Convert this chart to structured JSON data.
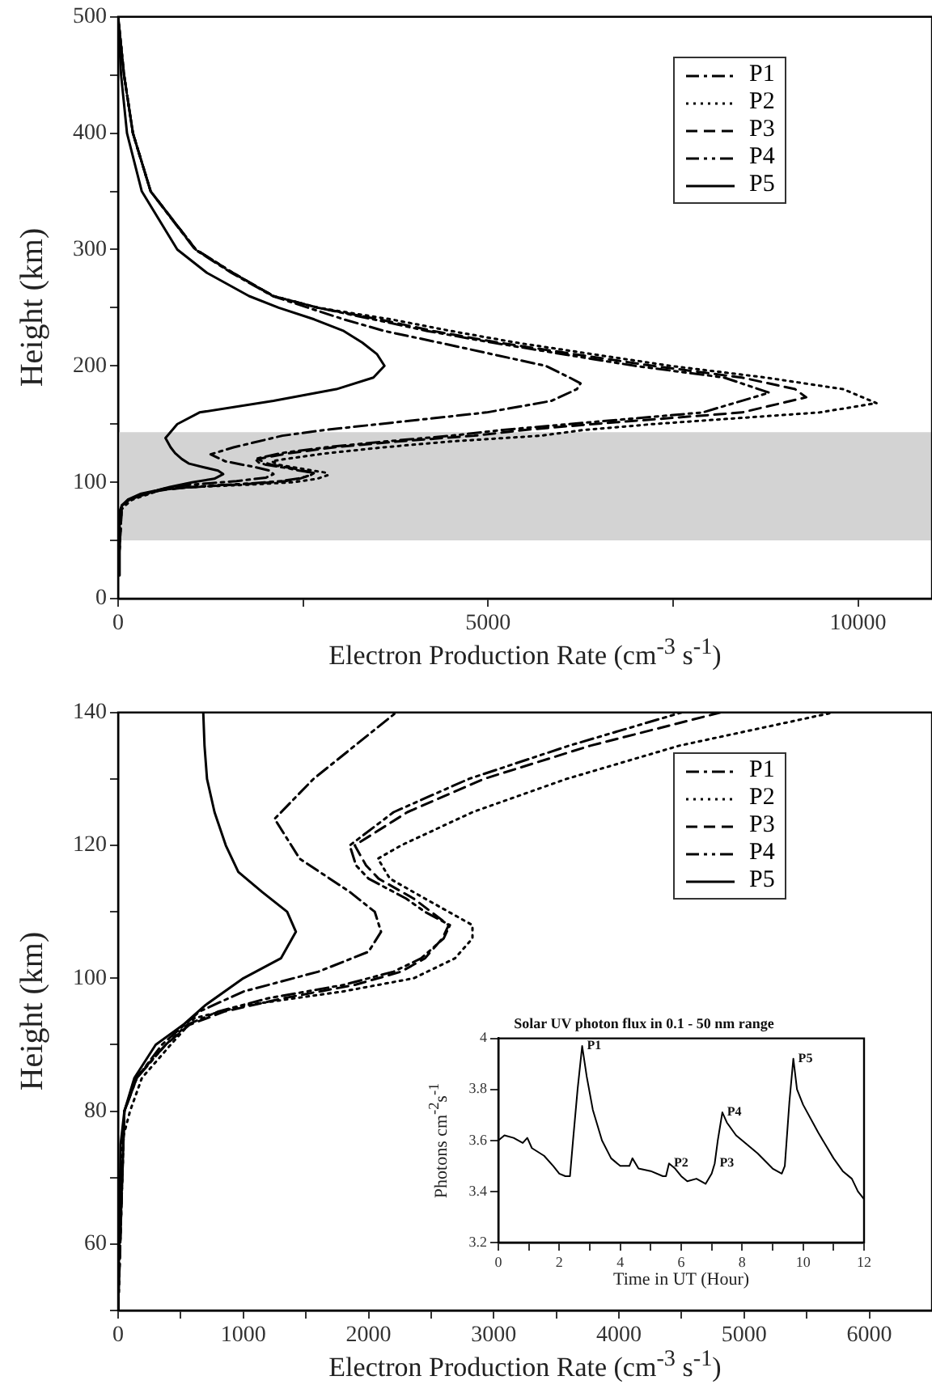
{
  "chart_data": [
    {
      "type": "line",
      "xlabel": "Electron Production Rate (cm$^{-3}$ s$^{-1}$)",
      "ylabel": "Height (km)",
      "xlim": [
        0,
        11000
      ],
      "xticks": [
        0,
        {
          "value": 2500,
          "label": null
        },
        5000,
        {
          "value": 7500,
          "label": null
        },
        10000
      ],
      "ylim": [
        0,
        500
      ],
      "yticks": [
        0,
        {
          "value": 50,
          "label": null
        },
        100,
        {
          "value": 150,
          "label": null
        },
        200,
        {
          "value": 250,
          "label": null
        },
        300,
        {
          "value": 350,
          "label": null
        },
        400,
        {
          "value": 450,
          "label": null
        },
        500
      ],
      "legend": "top right",
      "bands": [
        {
          "axis": "y",
          "from": 50,
          "to": 143,
          "color": "#d3d3d3"
        }
      ],
      "series": [
        {
          "name": "P1",
          "color": "#000000",
          "line_style": "dashdot",
          "x": [
            0,
            50,
            150,
            350,
            650,
            1000,
            1600,
            2000,
            2100,
            2050,
            1850,
            1450,
            1250,
            1560,
            2220,
            2800,
            3530,
            4980,
            5860,
            6200,
            6250,
            6100,
            5780,
            5060,
            4340,
            3600,
            3050,
            2570,
            2090,
            1530,
            1040,
            440,
            200,
            80,
            0
          ],
          "values": [
            20,
            80,
            85,
            90,
            95,
            98,
            101,
            104,
            107,
            110,
            113,
            118,
            124,
            130,
            140,
            145,
            150,
            160,
            170,
            180,
            185,
            190,
            200,
            210,
            220,
            230,
            240,
            250,
            260,
            280,
            300,
            350,
            400,
            450,
            500
          ]
        },
        {
          "name": "P2",
          "color": "#000000",
          "line_style": "dotted",
          "x": [
            0,
            25,
            95,
            190,
            420,
            610,
            1040,
            1790,
            2360,
            2690,
            2830,
            2830,
            2640,
            2450,
            2170,
            2075,
            2260,
            2830,
            3580,
            4480,
            5710,
            6300,
            7230,
            9480,
            10250,
            9800,
            8750,
            7470,
            6420,
            5380,
            4500,
            3690,
            2700,
            2100,
            1550,
            1050,
            440,
            200,
            80,
            0
          ],
          "values": [
            20,
            75,
            80,
            85,
            90,
            94,
            96,
            98,
            100,
            103,
            106,
            108,
            110,
            112,
            115,
            118,
            120,
            125,
            130,
            135,
            140,
            145,
            150,
            160,
            168,
            180,
            190,
            200,
            210,
            220,
            230,
            240,
            250,
            260,
            280,
            300,
            350,
            400,
            450,
            500
          ]
        },
        {
          "name": "P3",
          "color": "#000000",
          "line_style": "dashed",
          "x": [
            0,
            50,
            140,
            380,
            570,
            850,
            1320,
            1890,
            2260,
            2450,
            2590,
            2640,
            2500,
            2360,
            2080,
            1980,
            1890,
            2310,
            2920,
            3770,
            4810,
            5500,
            6420,
            8430,
            9300,
            9150,
            8430,
            7230,
            6180,
            5140,
            4260,
            3530,
            2700,
            2100,
            1550,
            1050,
            440,
            200,
            80,
            0
          ],
          "values": [
            20,
            80,
            85,
            90,
            93,
            95,
            97,
            99,
            101,
            103,
            106,
            108,
            110,
            112,
            115,
            117,
            120,
            125,
            130,
            135,
            140,
            145,
            150,
            160,
            173,
            180,
            190,
            200,
            210,
            220,
            230,
            240,
            250,
            260,
            280,
            300,
            350,
            400,
            450,
            500
          ]
        },
        {
          "name": "P4",
          "color": "#000000",
          "line_style": "dashdotdot",
          "x": [
            0,
            50,
            150,
            380,
            550,
            800,
            1200,
            1800,
            2200,
            2420,
            2600,
            2650,
            2450,
            2300,
            2000,
            1900,
            1850,
            2200,
            2800,
            3600,
            4500,
            5200,
            6100,
            7900,
            8800,
            8190,
            6990,
            6020,
            5060,
            4180,
            3450,
            2700,
            2100,
            1550,
            1050,
            440,
            200,
            80,
            0
          ],
          "values": [
            20,
            80,
            85,
            90,
            93,
            95,
            97,
            99,
            101,
            103,
            106,
            108,
            110,
            112,
            115,
            117,
            120,
            125,
            130,
            135,
            140,
            145,
            150,
            160,
            177,
            190,
            200,
            210,
            220,
            230,
            240,
            250,
            260,
            280,
            300,
            350,
            400,
            450,
            500
          ]
        },
        {
          "name": "P5",
          "color": "#000000",
          "line_style": "solid",
          "x": [
            0,
            20,
            50,
            130,
            300,
            520,
            700,
            1000,
            1300,
            1420,
            1350,
            1150,
            960,
            860,
            770,
            710,
            640,
            800,
            1100,
            2100,
            2950,
            3450,
            3600,
            3500,
            3300,
            3050,
            2650,
            2170,
            1770,
            1200,
            800,
            320,
            120,
            40,
            0
          ],
          "values": [
            20,
            75,
            80,
            85,
            90,
            93,
            96,
            100,
            103,
            107,
            110,
            113,
            116,
            120,
            125,
            130,
            138,
            150,
            160,
            170,
            180,
            190,
            200,
            210,
            220,
            230,
            240,
            250,
            260,
            280,
            300,
            350,
            400,
            450,
            500
          ]
        }
      ]
    },
    {
      "type": "line",
      "xlabel": "Electron Production Rate (cm$^{-3}$ s$^{-1}$)",
      "ylabel": "Height (km)",
      "xlim": [
        0,
        6500
      ],
      "xticks": [
        0,
        {
          "value": 500,
          "label": null
        },
        1000,
        {
          "value": 1500,
          "label": null
        },
        2000,
        {
          "value": 2500,
          "label": null
        },
        3000,
        {
          "value": 3500,
          "label": null
        },
        4000,
        {
          "value": 4500,
          "label": null
        },
        5000,
        {
          "value": 5500,
          "label": null
        },
        6000
      ],
      "ylim": [
        50,
        140
      ],
      "yticks": [
        {
          "value": 50,
          "label": null
        },
        60,
        {
          "value": 70,
          "label": null
        },
        80,
        {
          "value": 90,
          "label": null
        },
        100,
        {
          "value": 110,
          "label": null
        },
        120,
        {
          "value": 130,
          "label": null
        },
        140
      ],
      "legend": "top right",
      "series": [
        {
          "name": "P1",
          "color": "#000000",
          "line_style": "dashdot",
          "x": [
            0,
            50,
            150,
            350,
            650,
            1000,
            1600,
            2000,
            2100,
            2050,
            1850,
            1450,
            1250,
            1560,
            2220
          ],
          "values": [
            50,
            80,
            85,
            90,
            95,
            98,
            101,
            104,
            107,
            110,
            113,
            118,
            124,
            130,
            140
          ]
        },
        {
          "name": "P2",
          "color": "#000000",
          "line_style": "dotted",
          "x": [
            0,
            25,
            95,
            190,
            420,
            610,
            1040,
            1790,
            2360,
            2690,
            2830,
            2830,
            2640,
            2450,
            2170,
            2075,
            2260,
            2830,
            3580,
            4480,
            5710
          ],
          "values": [
            50,
            75,
            80,
            85,
            90,
            94,
            96,
            98,
            100,
            103,
            106,
            108,
            110,
            112,
            115,
            118,
            120,
            125,
            130,
            135,
            140
          ]
        },
        {
          "name": "P3",
          "color": "#000000",
          "line_style": "dashed",
          "x": [
            0,
            50,
            140,
            380,
            570,
            850,
            1320,
            1890,
            2260,
            2450,
            2590,
            2640,
            2500,
            2360,
            2080,
            1980,
            1890,
            2310,
            2920,
            3770,
            4810
          ],
          "values": [
            50,
            80,
            85,
            90,
            93,
            95,
            97,
            99,
            101,
            103,
            106,
            108,
            110,
            112,
            115,
            117,
            120,
            125,
            130,
            135,
            140
          ]
        },
        {
          "name": "P4",
          "color": "#000000",
          "line_style": "dashdotdot",
          "x": [
            0,
            50,
            150,
            380,
            550,
            800,
            1200,
            1800,
            2200,
            2420,
            2600,
            2650,
            2450,
            2300,
            2000,
            1900,
            1850,
            2200,
            2800,
            3600,
            4500
          ],
          "values": [
            50,
            80,
            85,
            90,
            93,
            95,
            97,
            99,
            101,
            103,
            106,
            108,
            110,
            112,
            115,
            117,
            120,
            125,
            130,
            135,
            140
          ]
        },
        {
          "name": "P5",
          "color": "#000000",
          "line_style": "solid",
          "x": [
            0,
            20,
            50,
            130,
            300,
            520,
            700,
            1000,
            1300,
            1420,
            1350,
            1150,
            960,
            860,
            770,
            710,
            690,
            680
          ],
          "values": [
            50,
            75,
            80,
            85,
            90,
            93,
            96,
            100,
            103,
            107,
            110,
            113,
            116,
            120,
            125,
            130,
            135,
            140
          ]
        }
      ]
    },
    {
      "type": "line",
      "title": "Solar UV photon flux in 0.1 - 50 nm range",
      "xlabel": "Time in UT (Hour)",
      "ylabel": "Photons cm$^{-2}$s$^{-1}$",
      "xlim": [
        0,
        12
      ],
      "xticks": [
        0,
        {
          "value": 1,
          "label": null
        },
        2,
        {
          "value": 3,
          "label": null
        },
        4,
        {
          "value": 5,
          "label": null
        },
        6,
        {
          "value": 7,
          "label": null
        },
        8,
        {
          "value": 9,
          "label": null
        },
        10,
        {
          "value": 11,
          "label": null
        },
        12
      ],
      "ylim": [
        3.2,
        4
      ],
      "yticks": [
        3.2,
        3.4,
        3.6,
        3.8,
        4
      ],
      "color": "#000000",
      "x": [
        0,
        0.2,
        0.5,
        0.8,
        0.95,
        1.1,
        1.5,
        1.8,
        2.0,
        2.2,
        2.35,
        2.45,
        2.6,
        2.75,
        2.9,
        3.1,
        3.4,
        3.7,
        4.0,
        4.3,
        4.4,
        4.6,
        5.0,
        5.4,
        5.5,
        5.6,
        5.8,
        6.0,
        6.2,
        6.5,
        6.8,
        7.0,
        7.1,
        7.2,
        7.35,
        7.5,
        7.8,
        8.0,
        8.5,
        9.0,
        9.3,
        9.4,
        9.55,
        9.68,
        9.8,
        10.0,
        10.5,
        11.0,
        11.3,
        11.6,
        11.8,
        12.0
      ],
      "values": [
        3.6,
        3.62,
        3.61,
        3.59,
        3.61,
        3.57,
        3.54,
        3.5,
        3.47,
        3.46,
        3.46,
        3.6,
        3.8,
        3.97,
        3.85,
        3.72,
        3.6,
        3.53,
        3.5,
        3.5,
        3.53,
        3.49,
        3.48,
        3.46,
        3.46,
        3.51,
        3.49,
        3.46,
        3.44,
        3.45,
        3.43,
        3.47,
        3.51,
        3.6,
        3.71,
        3.67,
        3.62,
        3.6,
        3.55,
        3.49,
        3.47,
        3.5,
        3.75,
        3.92,
        3.8,
        3.74,
        3.63,
        3.53,
        3.48,
        3.45,
        3.4,
        3.37
      ],
      "annotations": [
        {
          "text": "P1",
          "x": 2.75,
          "y": 3.97
        },
        {
          "text": "P2",
          "x": 5.6,
          "y": 3.51
        },
        {
          "text": "P3",
          "x": 7.1,
          "y": 3.51
        },
        {
          "text": "P4",
          "x": 7.35,
          "y": 3.71
        },
        {
          "text": "P5",
          "x": 9.68,
          "y": 3.92
        }
      ]
    }
  ]
}
